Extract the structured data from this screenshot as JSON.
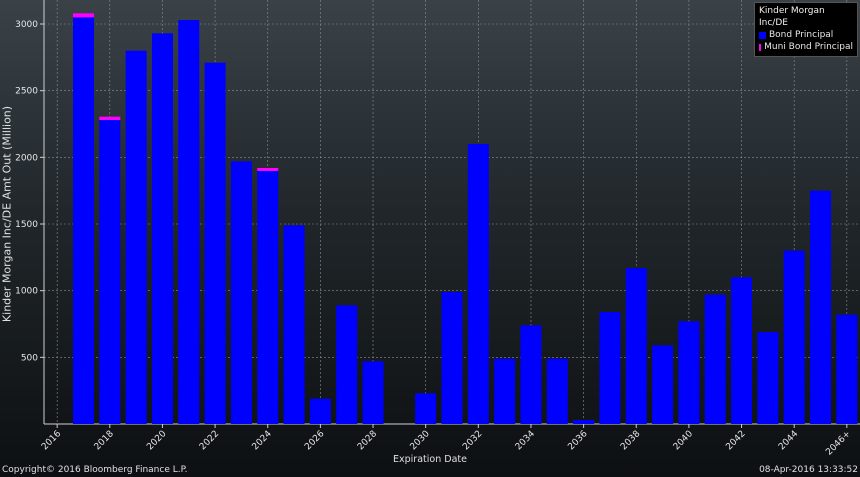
{
  "chart_data": {
    "type": "bar",
    "xlabel": "Expiration Date",
    "ylabel": "Kinder Morgan Inc/DE Amt Out (Million)",
    "ylim": [
      0,
      3180
    ],
    "yticks": [
      500,
      1000,
      1500,
      2000,
      2500,
      3000
    ],
    "xticks": [
      "2016",
      "2018",
      "2020",
      "2022",
      "2024",
      "2026",
      "2028",
      "2030",
      "2032",
      "2034",
      "2036",
      "2038",
      "2040",
      "2042",
      "2044",
      "2046+"
    ],
    "categories": [
      "2016",
      "2017",
      "2018",
      "2019",
      "2020",
      "2021",
      "2022",
      "2023",
      "2024",
      "2025",
      "2026",
      "2027",
      "2028",
      "2029",
      "2030",
      "2031",
      "2032",
      "2033",
      "2034",
      "2035",
      "2036",
      "2037",
      "2038",
      "2039",
      "2040",
      "2041",
      "2042",
      "2043",
      "2044",
      "2045",
      "2046+"
    ],
    "grid": true,
    "legend_position": "top-right",
    "legend_title": "Kinder Morgan Inc/DE",
    "series": [
      {
        "name": "Bond Principal",
        "color": "#0000ff",
        "values": [
          0,
          3050,
          2280,
          2800,
          2930,
          3030,
          2710,
          1970,
          1900,
          1490,
          190,
          890,
          470,
          0,
          230,
          990,
          2100,
          490,
          740,
          490,
          30,
          840,
          1170,
          590,
          770,
          970,
          1100,
          690,
          1300,
          1750,
          820
        ]
      },
      {
        "name": "Muni Bond Principal",
        "color": "#ff00ff",
        "values": [
          0,
          30,
          25,
          0,
          0,
          0,
          0,
          0,
          20,
          0,
          0,
          0,
          0,
          0,
          0,
          0,
          0,
          0,
          0,
          0,
          0,
          0,
          0,
          0,
          0,
          0,
          0,
          0,
          0,
          0,
          0
        ]
      }
    ]
  },
  "footer": {
    "copyright": "Copyright© 2016 Bloomberg Finance L.P.",
    "timestamp": "08-Apr-2016 13:33:52"
  }
}
